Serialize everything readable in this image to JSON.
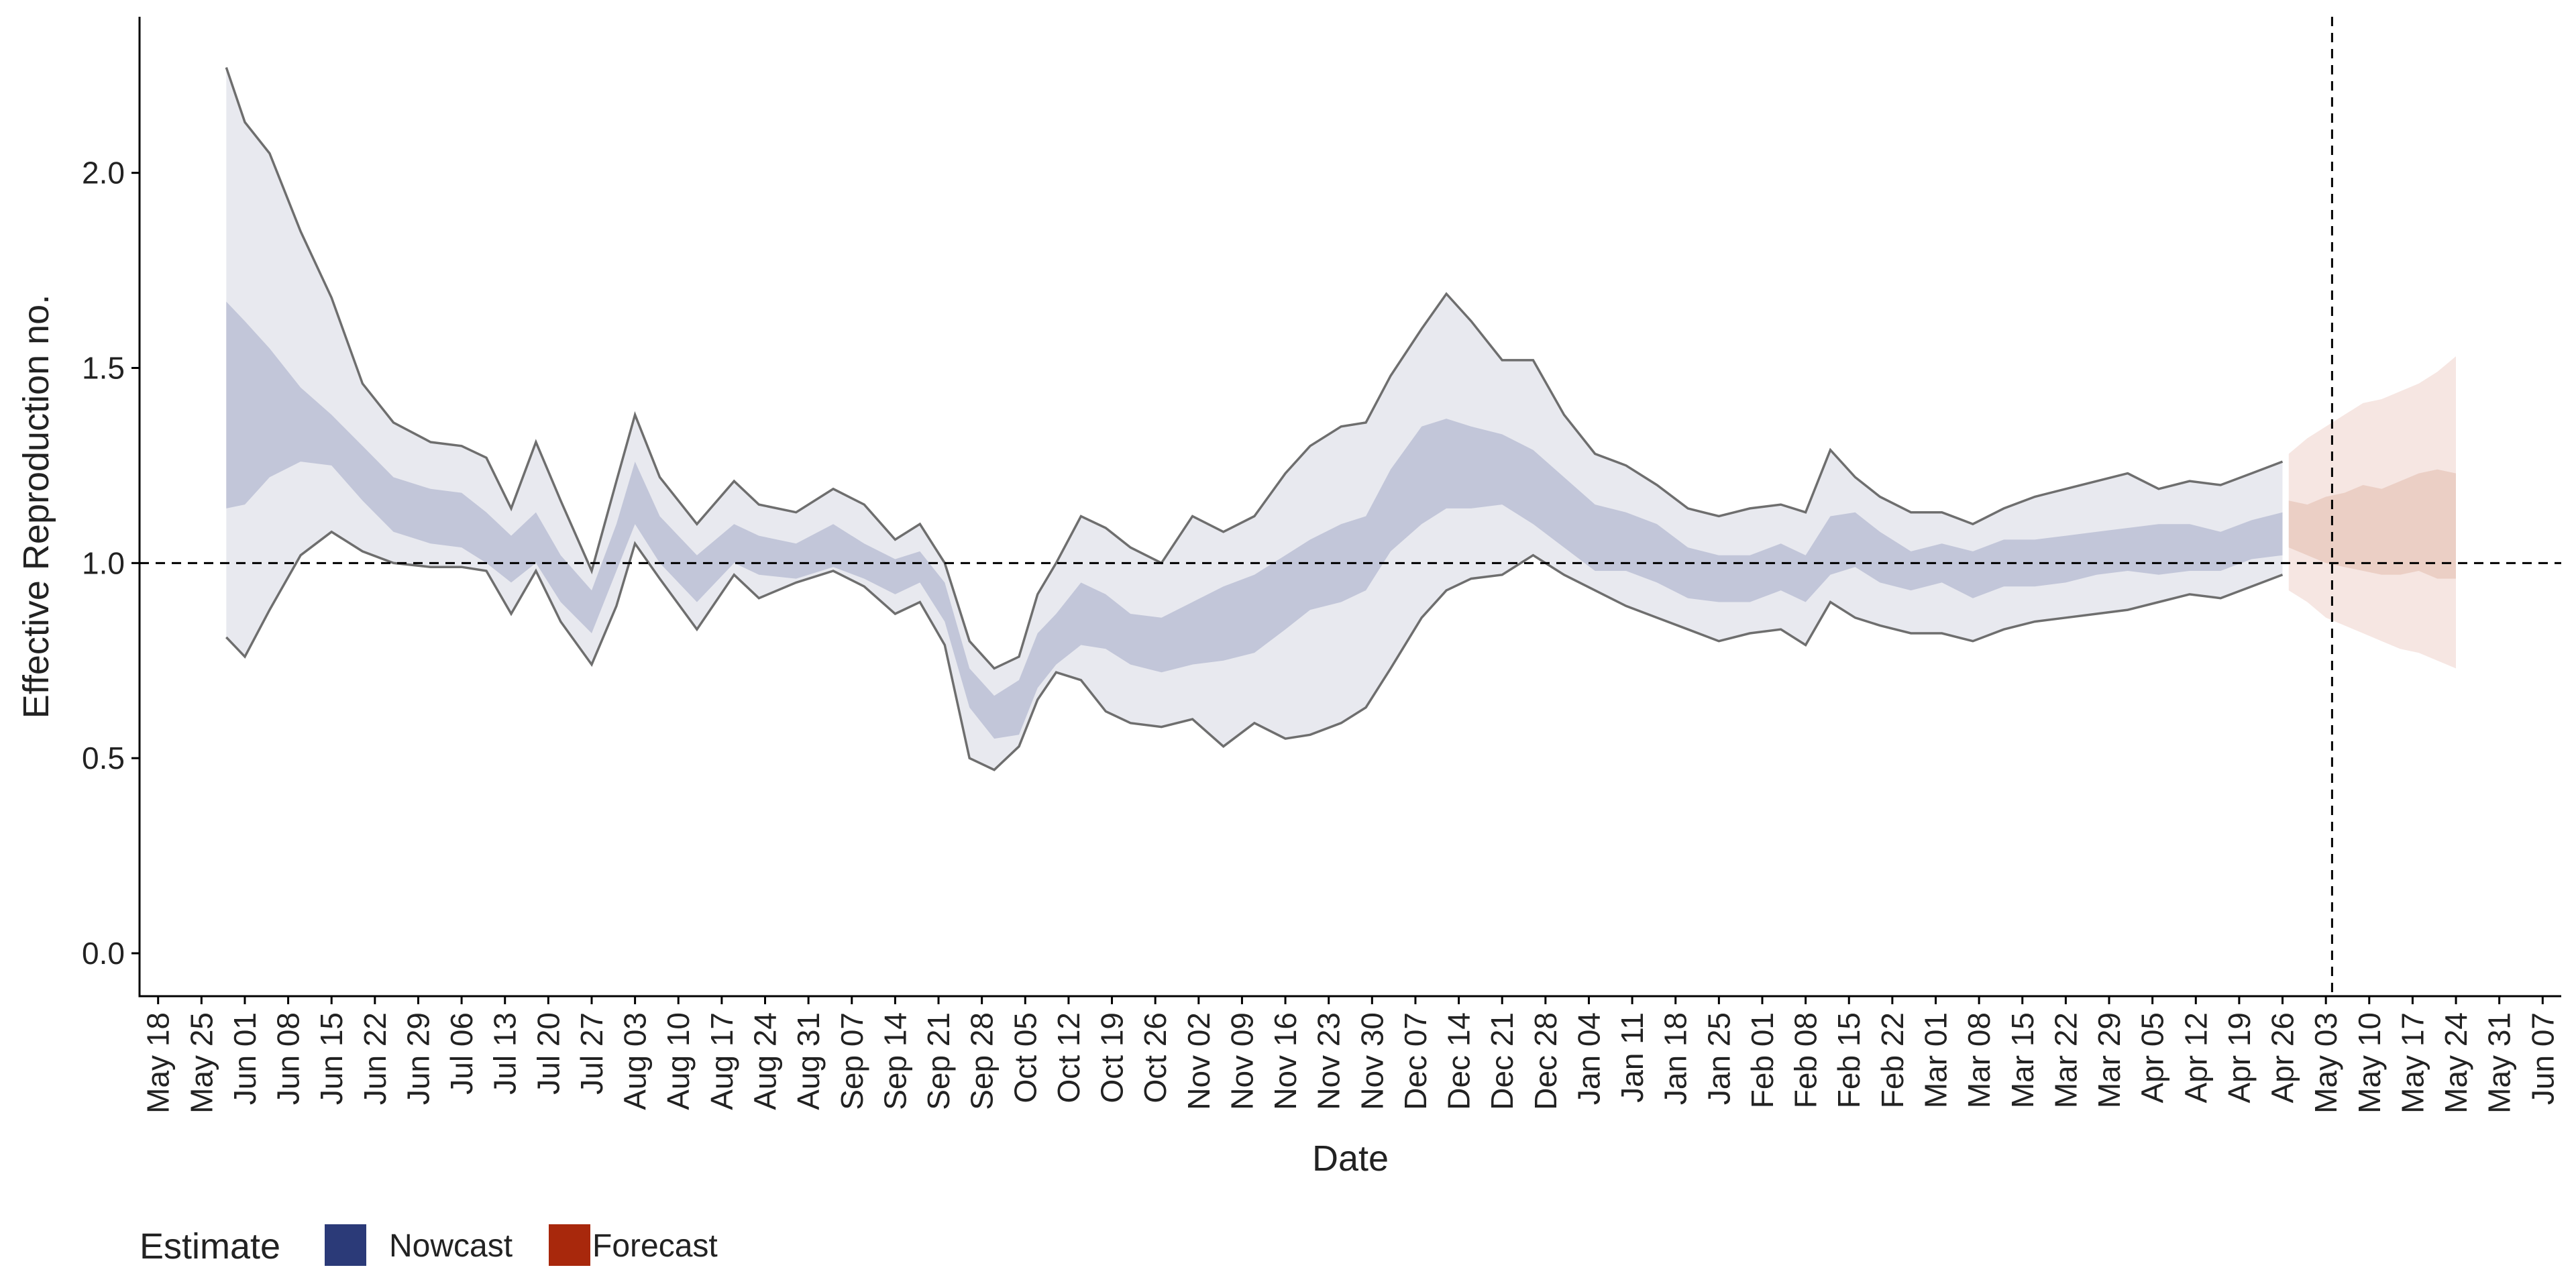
{
  "chart_data": {
    "type": "area",
    "xlabel": "Date",
    "ylabel": "Effective Reproduction no.",
    "ylim": [
      -0.11,
      2.4
    ],
    "xlim": [
      "2020-05-15",
      "2021-06-10"
    ],
    "x_ticks": [
      "2020-05-18",
      "2020-05-25",
      "2020-06-01",
      "2020-06-08",
      "2020-06-15",
      "2020-06-22",
      "2020-06-29",
      "2020-07-06",
      "2020-07-13",
      "2020-07-20",
      "2020-07-27",
      "2020-08-03",
      "2020-08-10",
      "2020-08-17",
      "2020-08-24",
      "2020-08-31",
      "2020-09-07",
      "2020-09-14",
      "2020-09-21",
      "2020-09-28",
      "2020-10-05",
      "2020-10-12",
      "2020-10-19",
      "2020-10-26",
      "2020-11-02",
      "2020-11-09",
      "2020-11-16",
      "2020-11-23",
      "2020-11-30",
      "2020-12-07",
      "2020-12-14",
      "2020-12-21",
      "2020-12-28",
      "2021-01-04",
      "2021-01-11",
      "2021-01-18",
      "2021-01-25",
      "2021-02-01",
      "2021-02-08",
      "2021-02-15",
      "2021-02-22",
      "2021-03-01",
      "2021-03-08",
      "2021-03-15",
      "2021-03-22",
      "2021-03-29",
      "2021-04-05",
      "2021-04-12",
      "2021-04-19",
      "2021-04-26",
      "2021-05-03",
      "2021-05-10",
      "2021-05-17",
      "2021-05-24",
      "2021-05-31",
      "2021-06-07"
    ],
    "x_tick_labels": [
      "May 18",
      "May 25",
      "Jun 01",
      "Jun 08",
      "Jun 15",
      "Jun 22",
      "Jun 29",
      "Jul 06",
      "Jul 13",
      "Jul 20",
      "Jul 27",
      "Aug 03",
      "Aug 10",
      "Aug 17",
      "Aug 24",
      "Aug 31",
      "Sep 07",
      "Sep 14",
      "Sep 21",
      "Sep 28",
      "Oct 05",
      "Oct 12",
      "Oct 19",
      "Oct 26",
      "Nov 02",
      "Nov 09",
      "Nov 16",
      "Nov 23",
      "Nov 30",
      "Dec 07",
      "Dec 14",
      "Dec 21",
      "Dec 28",
      "Jan 04",
      "Jan 11",
      "Jan 18",
      "Jan 25",
      "Feb 01",
      "Feb 08",
      "Feb 15",
      "Feb 22",
      "Mar 01",
      "Mar 08",
      "Mar 15",
      "Mar 22",
      "Mar 29",
      "Apr 05",
      "Apr 12",
      "Apr 19",
      "Apr 26",
      "May 03",
      "May 10",
      "May 17",
      "May 24",
      "May 31",
      "Jun 07"
    ],
    "y_ticks": [
      0.0,
      0.5,
      1.0,
      1.5,
      2.0
    ],
    "y_tick_labels": [
      "0.0",
      "0.5",
      "1.0",
      "1.5",
      "2.0"
    ],
    "reference_line_y": 1.0,
    "reference_line_date": "2021-05-04",
    "legend": {
      "title": "Estimate",
      "position": "bottom-left",
      "items": [
        {
          "label": "Nowcast",
          "color": "#2b3a78"
        },
        {
          "label": "Forecast",
          "color": "#a8280c"
        }
      ]
    },
    "colors": {
      "nowcast_outer": "#e8e9ef",
      "nowcast_inner": "#c2c6d9",
      "forecast_outer": "#f6e6e2",
      "forecast_inner": "#ebcfc5",
      "bound_line": "#6e6e6e",
      "axis": "#000000"
    },
    "series": [
      {
        "name": "Nowcast",
        "x": [
          "2020-05-29",
          "2020-06-01",
          "2020-06-05",
          "2020-06-10",
          "2020-06-15",
          "2020-06-20",
          "2020-06-25",
          "2020-07-01",
          "2020-07-06",
          "2020-07-10",
          "2020-07-14",
          "2020-07-18",
          "2020-07-22",
          "2020-07-27",
          "2020-07-31",
          "2020-08-03",
          "2020-08-07",
          "2020-08-13",
          "2020-08-19",
          "2020-08-23",
          "2020-08-29",
          "2020-09-04",
          "2020-09-09",
          "2020-09-14",
          "2020-09-18",
          "2020-09-22",
          "2020-09-26",
          "2020-09-30",
          "2020-10-04",
          "2020-10-07",
          "2020-10-10",
          "2020-10-14",
          "2020-10-18",
          "2020-10-22",
          "2020-10-27",
          "2020-11-01",
          "2020-11-06",
          "2020-11-11",
          "2020-11-16",
          "2020-11-20",
          "2020-11-25",
          "2020-11-29",
          "2020-12-03",
          "2020-12-08",
          "2020-12-12",
          "2020-12-16",
          "2020-12-21",
          "2020-12-26",
          "2020-12-31",
          "2021-01-05",
          "2021-01-10",
          "2021-01-15",
          "2021-01-20",
          "2021-01-25",
          "2021-01-30",
          "2021-02-04",
          "2021-02-08",
          "2021-02-12",
          "2021-02-16",
          "2021-02-20",
          "2021-02-25",
          "2021-03-02",
          "2021-03-07",
          "2021-03-12",
          "2021-03-17",
          "2021-03-22",
          "2021-03-27",
          "2021-04-01",
          "2021-04-06",
          "2021-04-11",
          "2021-04-16",
          "2021-04-21",
          "2021-04-26"
        ],
        "outer_upper": [
          2.27,
          2.13,
          2.05,
          1.85,
          1.68,
          1.46,
          1.36,
          1.31,
          1.3,
          1.27,
          1.14,
          1.31,
          1.16,
          0.98,
          1.21,
          1.38,
          1.22,
          1.1,
          1.21,
          1.15,
          1.13,
          1.19,
          1.15,
          1.06,
          1.1,
          1.0,
          0.8,
          0.73,
          0.76,
          0.92,
          1.0,
          1.12,
          1.09,
          1.04,
          1.0,
          1.12,
          1.08,
          1.12,
          1.23,
          1.3,
          1.35,
          1.36,
          1.48,
          1.6,
          1.69,
          1.62,
          1.52,
          1.52,
          1.38,
          1.28,
          1.25,
          1.2,
          1.14,
          1.12,
          1.14,
          1.15,
          1.13,
          1.29,
          1.22,
          1.17,
          1.13,
          1.13,
          1.1,
          1.14,
          1.17,
          1.19,
          1.21,
          1.23,
          1.19,
          1.21,
          1.2,
          1.23,
          1.26
        ],
        "inner_upper": [
          1.67,
          1.62,
          1.55,
          1.45,
          1.38,
          1.3,
          1.22,
          1.19,
          1.18,
          1.13,
          1.07,
          1.13,
          1.02,
          0.93,
          1.1,
          1.26,
          1.12,
          1.02,
          1.1,
          1.07,
          1.05,
          1.1,
          1.05,
          1.01,
          1.03,
          0.95,
          0.73,
          0.66,
          0.7,
          0.82,
          0.87,
          0.95,
          0.92,
          0.87,
          0.86,
          0.9,
          0.94,
          0.97,
          1.02,
          1.06,
          1.1,
          1.12,
          1.24,
          1.35,
          1.37,
          1.35,
          1.33,
          1.29,
          1.22,
          1.15,
          1.13,
          1.1,
          1.04,
          1.02,
          1.02,
          1.05,
          1.02,
          1.12,
          1.13,
          1.08,
          1.03,
          1.05,
          1.03,
          1.06,
          1.06,
          1.07,
          1.08,
          1.09,
          1.1,
          1.1,
          1.08,
          1.11,
          1.13
        ],
        "inner_lower": [
          1.14,
          1.15,
          1.22,
          1.26,
          1.25,
          1.16,
          1.08,
          1.05,
          1.04,
          1.0,
          0.95,
          1.0,
          0.9,
          0.82,
          0.98,
          1.1,
          1.0,
          0.9,
          1.0,
          0.97,
          0.96,
          0.99,
          0.96,
          0.92,
          0.95,
          0.85,
          0.63,
          0.55,
          0.56,
          0.68,
          0.74,
          0.79,
          0.78,
          0.74,
          0.72,
          0.74,
          0.75,
          0.77,
          0.83,
          0.88,
          0.9,
          0.93,
          1.03,
          1.1,
          1.14,
          1.14,
          1.15,
          1.1,
          1.04,
          0.98,
          0.98,
          0.95,
          0.91,
          0.9,
          0.9,
          0.93,
          0.9,
          0.97,
          0.99,
          0.95,
          0.93,
          0.95,
          0.91,
          0.94,
          0.94,
          0.95,
          0.97,
          0.98,
          0.97,
          0.98,
          0.98,
          1.01,
          1.02
        ],
        "outer_lower": [
          0.81,
          0.76,
          0.88,
          1.02,
          1.08,
          1.03,
          1.0,
          0.99,
          0.99,
          0.98,
          0.87,
          0.98,
          0.85,
          0.74,
          0.89,
          1.05,
          0.96,
          0.83,
          0.97,
          0.91,
          0.95,
          0.98,
          0.94,
          0.87,
          0.9,
          0.79,
          0.5,
          0.47,
          0.53,
          0.65,
          0.72,
          0.7,
          0.62,
          0.59,
          0.58,
          0.6,
          0.53,
          0.59,
          0.55,
          0.56,
          0.59,
          0.63,
          0.73,
          0.86,
          0.93,
          0.96,
          0.97,
          1.02,
          0.97,
          0.93,
          0.89,
          0.86,
          0.83,
          0.8,
          0.82,
          0.83,
          0.79,
          0.9,
          0.86,
          0.84,
          0.82,
          0.82,
          0.8,
          0.83,
          0.85,
          0.86,
          0.87,
          0.88,
          0.9,
          0.92,
          0.91,
          0.94,
          0.97
        ]
      },
      {
        "name": "Forecast",
        "x": [
          "2021-04-27",
          "2021-04-30",
          "2021-05-03",
          "2021-05-06",
          "2021-05-09",
          "2021-05-12",
          "2021-05-15",
          "2021-05-18",
          "2021-05-21",
          "2021-05-24"
        ],
        "outer_upper": [
          1.28,
          1.32,
          1.35,
          1.38,
          1.41,
          1.42,
          1.44,
          1.46,
          1.49,
          1.53
        ],
        "inner_upper": [
          1.16,
          1.15,
          1.17,
          1.18,
          1.2,
          1.19,
          1.21,
          1.23,
          1.24,
          1.23
        ],
        "inner_lower": [
          1.04,
          1.02,
          1.0,
          0.99,
          0.98,
          0.97,
          0.97,
          0.98,
          0.96,
          0.96
        ],
        "outer_lower": [
          0.93,
          0.9,
          0.86,
          0.84,
          0.82,
          0.8,
          0.78,
          0.77,
          0.75,
          0.73
        ]
      }
    ]
  }
}
